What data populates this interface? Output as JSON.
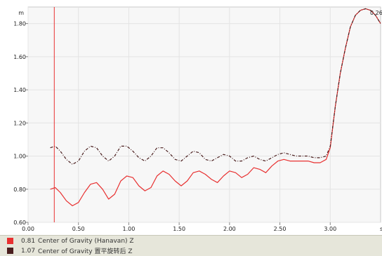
{
  "chart_data": {
    "type": "line",
    "xlabel": "s",
    "ylabel": "m",
    "xlim": [
      0,
      3.5
    ],
    "ylim": [
      0.6,
      1.9
    ],
    "x_ticks": [
      "0.00",
      "0.50",
      "1.00",
      "1.50",
      "2.00",
      "2.50",
      "3.00"
    ],
    "y_ticks": [
      "0.60",
      "0.80",
      "1.00",
      "1.20",
      "1.40",
      "1.60",
      "1.80"
    ],
    "grid": true,
    "cursor_x": 0.26,
    "cursor_label": "0.26",
    "series": [
      {
        "name": "Center of Gravity (Hanavan) Z",
        "legend_value": "0.81",
        "color": "#e83030",
        "style": "solid",
        "x": [
          0.22,
          0.27,
          0.32,
          0.38,
          0.44,
          0.5,
          0.56,
          0.62,
          0.68,
          0.74,
          0.8,
          0.86,
          0.92,
          0.98,
          1.04,
          1.1,
          1.16,
          1.22,
          1.28,
          1.34,
          1.4,
          1.46,
          1.52,
          1.58,
          1.64,
          1.7,
          1.76,
          1.82,
          1.88,
          1.94,
          2.0,
          2.06,
          2.12,
          2.18,
          2.24,
          2.3,
          2.36,
          2.42,
          2.48,
          2.54,
          2.6,
          2.66,
          2.72,
          2.78,
          2.84,
          2.9,
          2.96,
          3.0,
          3.05,
          3.1,
          3.15,
          3.2,
          3.25,
          3.3,
          3.35,
          3.4,
          3.45,
          3.5
        ],
        "y": [
          0.8,
          0.81,
          0.78,
          0.73,
          0.7,
          0.72,
          0.78,
          0.83,
          0.84,
          0.8,
          0.74,
          0.77,
          0.85,
          0.88,
          0.87,
          0.82,
          0.79,
          0.81,
          0.88,
          0.91,
          0.89,
          0.85,
          0.82,
          0.85,
          0.9,
          0.91,
          0.89,
          0.86,
          0.84,
          0.88,
          0.91,
          0.9,
          0.87,
          0.89,
          0.93,
          0.92,
          0.9,
          0.94,
          0.97,
          0.98,
          0.97,
          0.97,
          0.97,
          0.97,
          0.96,
          0.96,
          0.98,
          1.05,
          1.3,
          1.5,
          1.65,
          1.78,
          1.85,
          1.88,
          1.89,
          1.88,
          1.85,
          1.8
        ]
      },
      {
        "name": "Center of Gravity 置平旋转后 Z",
        "legend_value": "1.07",
        "color": "#4a1e1e",
        "style": "dashed",
        "x": [
          0.22,
          0.27,
          0.32,
          0.38,
          0.44,
          0.5,
          0.56,
          0.62,
          0.68,
          0.74,
          0.8,
          0.86,
          0.92,
          0.98,
          1.04,
          1.1,
          1.16,
          1.22,
          1.28,
          1.34,
          1.4,
          1.46,
          1.52,
          1.58,
          1.64,
          1.7,
          1.76,
          1.82,
          1.88,
          1.94,
          2.0,
          2.06,
          2.12,
          2.18,
          2.24,
          2.3,
          2.36,
          2.42,
          2.48,
          2.54,
          2.6,
          2.66,
          2.72,
          2.78,
          2.84,
          2.9,
          2.96,
          3.0,
          3.05,
          3.1,
          3.15,
          3.2,
          3.25,
          3.3,
          3.35,
          3.4,
          3.45,
          3.5
        ],
        "y": [
          1.05,
          1.06,
          1.03,
          0.98,
          0.95,
          0.97,
          1.03,
          1.06,
          1.05,
          1.0,
          0.97,
          1.0,
          1.06,
          1.06,
          1.03,
          0.99,
          0.97,
          1.0,
          1.05,
          1.05,
          1.02,
          0.98,
          0.97,
          1.0,
          1.03,
          1.02,
          0.98,
          0.97,
          0.99,
          1.01,
          1.0,
          0.97,
          0.97,
          0.99,
          1.0,
          0.98,
          0.97,
          0.99,
          1.01,
          1.02,
          1.01,
          1.0,
          1.0,
          1.0,
          0.99,
          0.99,
          1.0,
          1.06,
          1.3,
          1.5,
          1.65,
          1.78,
          1.85,
          1.88,
          1.89,
          1.88,
          1.85,
          1.8
        ]
      }
    ]
  }
}
